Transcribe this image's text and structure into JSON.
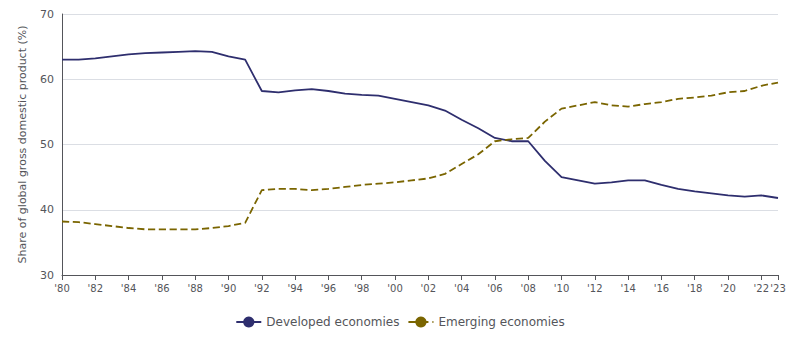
{
  "chart_data": {
    "type": "line",
    "x": [
      1980,
      1981,
      1982,
      1983,
      1984,
      1985,
      1986,
      1987,
      1988,
      1989,
      1990,
      1991,
      1992,
      1993,
      1994,
      1995,
      1996,
      1997,
      1998,
      1999,
      2000,
      2001,
      2002,
      2003,
      2004,
      2005,
      2006,
      2007,
      2008,
      2009,
      2010,
      2011,
      2012,
      2013,
      2014,
      2015,
      2016,
      2017,
      2018,
      2019,
      2020,
      2021,
      2022,
      2023
    ],
    "series": [
      {
        "name": "Developed economies",
        "color": "#2e2e6e",
        "line_style": "solid",
        "values": [
          63.0,
          63.0,
          63.2,
          63.5,
          63.8,
          64.0,
          64.1,
          64.2,
          64.3,
          64.2,
          63.5,
          63.0,
          58.2,
          58.0,
          58.3,
          58.5,
          58.2,
          57.8,
          57.6,
          57.5,
          57.0,
          56.5,
          56.0,
          55.2,
          53.8,
          52.5,
          51.0,
          50.5,
          50.5,
          47.5,
          45.0,
          44.5,
          44.0,
          44.2,
          44.5,
          44.5,
          43.8,
          43.2,
          42.8,
          42.5,
          42.2,
          42.0,
          42.2,
          41.8
        ]
      },
      {
        "name": "Emerging economies",
        "color": "#7a6500",
        "line_style": "dashed",
        "values": [
          38.2,
          38.1,
          37.8,
          37.5,
          37.2,
          37.0,
          37.0,
          37.0,
          37.0,
          37.2,
          37.5,
          38.0,
          43.0,
          43.2,
          43.2,
          43.0,
          43.2,
          43.5,
          43.8,
          44.0,
          44.2,
          44.5,
          44.8,
          45.5,
          47.0,
          48.5,
          50.5,
          50.8,
          51.0,
          53.5,
          55.5,
          56.0,
          56.5,
          56.0,
          55.8,
          56.2,
          56.5,
          57.0,
          57.2,
          57.5,
          58.0,
          58.2,
          59.0,
          59.5
        ]
      }
    ],
    "xlim": [
      1980,
      2023
    ],
    "xticks": [
      {
        "value": 1980,
        "label": "'80"
      },
      {
        "value": 1982,
        "label": "'82"
      },
      {
        "value": 1984,
        "label": "'84"
      },
      {
        "value": 1986,
        "label": "'86"
      },
      {
        "value": 1988,
        "label": "'88"
      },
      {
        "value": 1990,
        "label": "'90"
      },
      {
        "value": 1992,
        "label": "'92"
      },
      {
        "value": 1994,
        "label": "'94"
      },
      {
        "value": 1996,
        "label": "'96"
      },
      {
        "value": 1998,
        "label": "'98"
      },
      {
        "value": 2000,
        "label": "'00"
      },
      {
        "value": 2002,
        "label": "'02"
      },
      {
        "value": 2004,
        "label": "'04"
      },
      {
        "value": 2006,
        "label": "'06"
      },
      {
        "value": 2008,
        "label": "'08"
      },
      {
        "value": 2010,
        "label": "'10"
      },
      {
        "value": 2012,
        "label": "'12"
      },
      {
        "value": 2014,
        "label": "'14"
      },
      {
        "value": 2016,
        "label": "'16"
      },
      {
        "value": 2018,
        "label": "'18"
      },
      {
        "value": 2020,
        "label": "'20"
      },
      {
        "value": 2022,
        "label": "'22"
      },
      {
        "value": 2023,
        "label": "'23"
      }
    ],
    "ylim": [
      30,
      70
    ],
    "yticks": [
      30,
      40,
      50,
      60,
      70
    ],
    "ylabel": "Share of global gross domestic product (%)",
    "grid": true,
    "legend": "bottom"
  }
}
